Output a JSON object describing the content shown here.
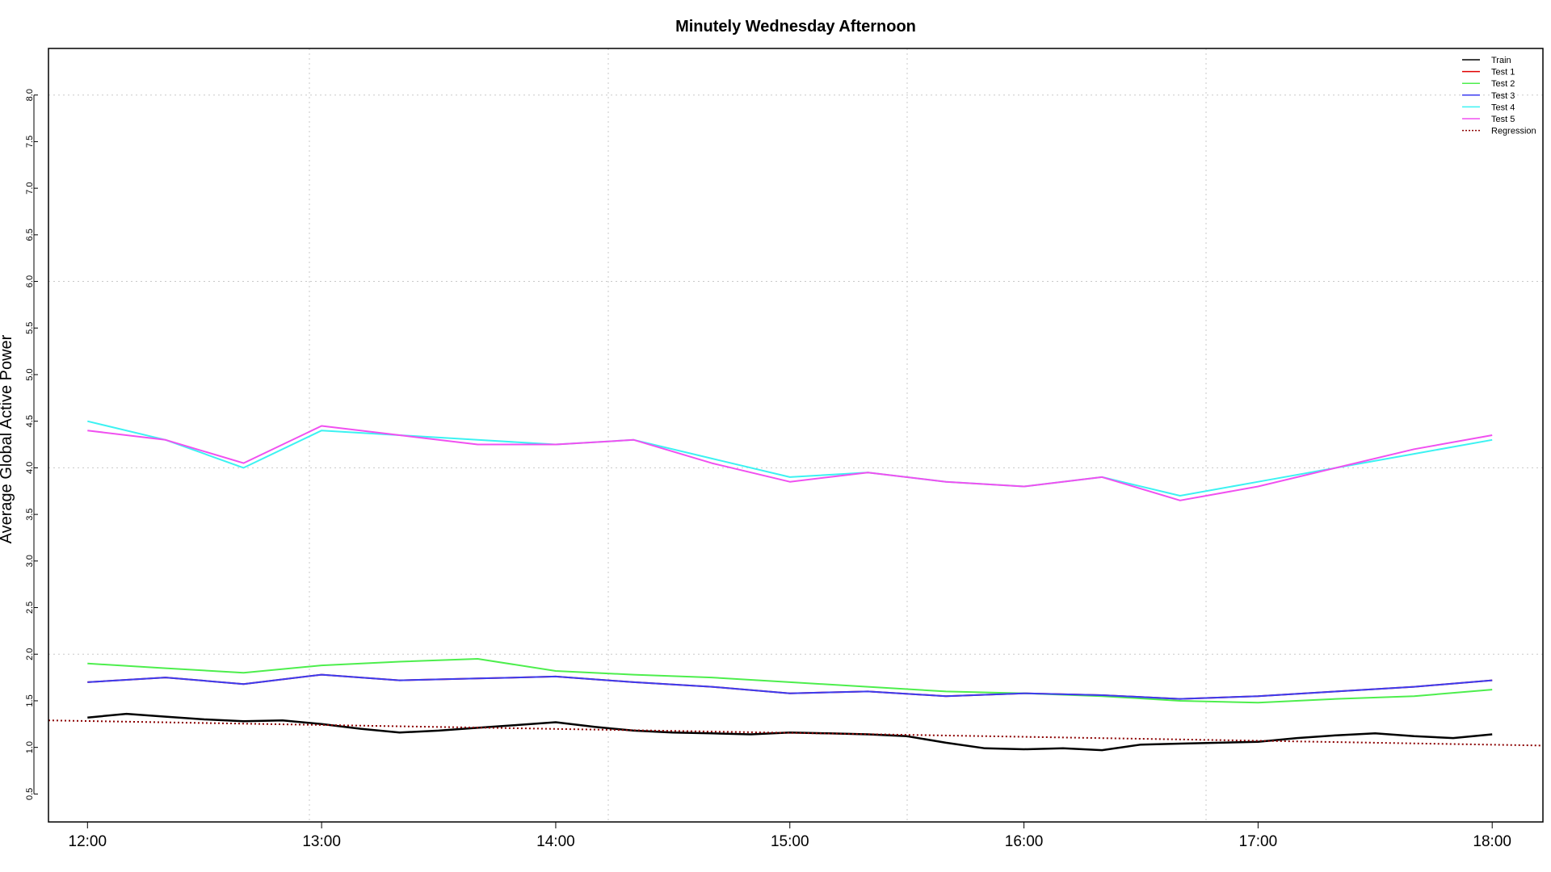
{
  "chart_data": {
    "type": "line",
    "title": "Minutely Wednesday Afternoon",
    "xlabel": "",
    "ylabel": "Average Global Active Power",
    "xlim": [
      "11:50",
      "18:13"
    ],
    "ylim": [
      0.2,
      8.5
    ],
    "grid": true,
    "legend_position": "top-right",
    "x_ticks": [
      "12:00",
      "13:00",
      "14:00",
      "15:00",
      "16:00",
      "17:00",
      "18:00"
    ],
    "y_ticks": [
      "0.5",
      "1.0",
      "1.5",
      "2.0",
      "2.5",
      "3.0",
      "3.5",
      "4.0",
      "4.5",
      "5.0",
      "5.5",
      "6.0",
      "6.5",
      "7.0",
      "7.5",
      "8.0"
    ],
    "legend": [
      "Train",
      "Test 1",
      "Test 2",
      "Test 3",
      "Test 4",
      "Test 5",
      "Regression"
    ],
    "series": [
      {
        "name": "Train",
        "color": "#000000",
        "x": [
          "12:00",
          "12:10",
          "12:20",
          "12:30",
          "12:40",
          "12:50",
          "13:00",
          "13:10",
          "13:20",
          "13:30",
          "13:40",
          "13:50",
          "14:00",
          "14:10",
          "14:20",
          "14:30",
          "14:40",
          "14:50",
          "15:00",
          "15:10",
          "15:20",
          "15:30",
          "15:40",
          "15:50",
          "16:00",
          "16:10",
          "16:20",
          "16:30",
          "16:40",
          "16:50",
          "17:00",
          "17:10",
          "17:20",
          "17:30",
          "17:40",
          "17:50",
          "18:00"
        ],
        "values": [
          1.32,
          1.36,
          1.33,
          1.3,
          1.28,
          1.29,
          1.25,
          1.2,
          1.16,
          1.18,
          1.21,
          1.24,
          1.27,
          1.22,
          1.18,
          1.16,
          1.15,
          1.14,
          1.16,
          1.15,
          1.14,
          1.12,
          1.05,
          0.99,
          0.98,
          0.99,
          0.97,
          1.03,
          1.04,
          1.05,
          1.06,
          1.1,
          1.13,
          1.15,
          1.12,
          1.1,
          1.14
        ]
      },
      {
        "name": "Test 1",
        "color": "#e00000",
        "x": [
          "12:00",
          "12:20",
          "12:40",
          "13:00",
          "13:20",
          "13:40",
          "14:00",
          "14:20",
          "14:40",
          "15:00",
          "15:20",
          "15:40",
          "16:00",
          "16:20",
          "16:40",
          "17:00",
          "17:20",
          "17:40",
          "18:00"
        ],
        "values": [
          1.7,
          1.75,
          1.68,
          1.78,
          1.72,
          1.74,
          1.76,
          1.7,
          1.65,
          1.58,
          1.6,
          1.55,
          1.58,
          1.56,
          1.52,
          1.55,
          1.6,
          1.65,
          1.72
        ]
      },
      {
        "name": "Test 2",
        "color": "#4dee4d",
        "x": [
          "12:00",
          "12:20",
          "12:40",
          "13:00",
          "13:20",
          "13:40",
          "14:00",
          "14:20",
          "14:40",
          "15:00",
          "15:20",
          "15:40",
          "16:00",
          "16:20",
          "16:40",
          "17:00",
          "17:20",
          "17:40",
          "18:00"
        ],
        "values": [
          1.9,
          1.85,
          1.8,
          1.88,
          1.92,
          1.95,
          1.82,
          1.78,
          1.75,
          1.7,
          1.65,
          1.6,
          1.58,
          1.55,
          1.5,
          1.48,
          1.52,
          1.55,
          1.62
        ]
      },
      {
        "name": "Test 3",
        "color": "#3c3cf0",
        "x": [
          "12:00",
          "12:20",
          "12:40",
          "13:00",
          "13:20",
          "13:40",
          "14:00",
          "14:20",
          "14:40",
          "15:00",
          "15:20",
          "15:40",
          "16:00",
          "16:20",
          "16:40",
          "17:00",
          "17:20",
          "17:40",
          "18:00"
        ],
        "values": [
          1.7,
          1.75,
          1.68,
          1.78,
          1.72,
          1.74,
          1.76,
          1.7,
          1.65,
          1.58,
          1.6,
          1.55,
          1.58,
          1.56,
          1.52,
          1.55,
          1.6,
          1.65,
          1.72
        ]
      },
      {
        "name": "Test 4",
        "color": "#3cf2f2",
        "x": [
          "12:00",
          "12:20",
          "12:40",
          "13:00",
          "13:20",
          "13:40",
          "14:00",
          "14:20",
          "14:40",
          "15:00",
          "15:20",
          "15:40",
          "16:00",
          "16:20",
          "16:40",
          "17:00",
          "17:20",
          "17:40",
          "18:00"
        ],
        "values": [
          4.5,
          4.3,
          4.0,
          4.4,
          4.35,
          4.3,
          4.25,
          4.3,
          4.1,
          3.9,
          3.95,
          3.85,
          3.8,
          3.9,
          3.7,
          3.85,
          4.0,
          4.15,
          4.3
        ]
      },
      {
        "name": "Test 5",
        "color": "#f050f0",
        "x": [
          "12:00",
          "12:20",
          "12:40",
          "13:00",
          "13:20",
          "13:40",
          "14:00",
          "14:20",
          "14:40",
          "15:00",
          "15:20",
          "15:40",
          "16:00",
          "16:20",
          "16:40",
          "17:00",
          "17:20",
          "17:40",
          "18:00"
        ],
        "values": [
          4.4,
          4.3,
          4.05,
          4.45,
          4.35,
          4.25,
          4.25,
          4.3,
          4.05,
          3.85,
          3.95,
          3.85,
          3.8,
          3.9,
          3.65,
          3.8,
          4.0,
          4.2,
          4.35
        ]
      },
      {
        "name": "Regression",
        "color": "#8b0000",
        "x": [
          "11:50",
          "18:13"
        ],
        "values": [
          1.29,
          1.02
        ]
      }
    ]
  }
}
